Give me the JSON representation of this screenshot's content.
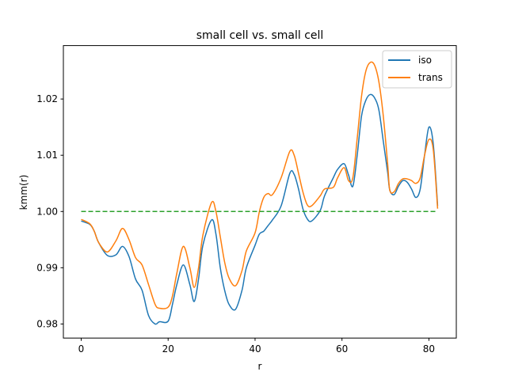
{
  "chart_data": {
    "type": "line",
    "title": "small cell vs. small cell",
    "xlabel": "r",
    "ylabel": "kmm(r)",
    "xlim": [
      -4.1,
      86.3
    ],
    "ylim": [
      0.9775,
      1.0295
    ],
    "xticks": [
      0,
      20,
      40,
      60,
      80
    ],
    "xtick_labels": [
      "0",
      "20",
      "40",
      "60",
      "80"
    ],
    "yticks": [
      0.98,
      0.99,
      1.0,
      1.01,
      1.02
    ],
    "ytick_labels": [
      "0.98",
      "0.99",
      "1.00",
      "1.01",
      "1.02"
    ],
    "grid": false,
    "legend": "top-right",
    "series": [
      {
        "name": "iso",
        "color": "#1f77b4",
        "x": [
          0,
          2,
          3,
          4,
          6,
          8,
          9.5,
          11,
          12.5,
          14,
          15.5,
          17,
          18,
          20,
          21,
          22,
          23.5,
          25,
          26,
          27,
          28,
          30,
          31,
          32,
          33,
          34,
          35.5,
          37,
          38,
          40,
          41,
          42,
          43,
          44,
          46,
          48,
          49,
          50,
          51,
          52,
          53,
          55,
          56,
          58,
          59,
          60.5,
          61.5,
          62.5,
          63.5,
          64.5,
          65.5,
          66.5,
          67.5,
          68.5,
          69.5,
          70.5,
          71,
          72,
          73,
          74,
          75,
          76,
          77,
          78,
          79,
          80,
          81,
          82
        ],
        "values": [
          0.9983,
          0.9977,
          0.9965,
          0.9945,
          0.9922,
          0.9923,
          0.9938,
          0.992,
          0.988,
          0.986,
          0.9815,
          0.98,
          0.9804,
          0.9805,
          0.9835,
          0.987,
          0.9905,
          0.987,
          0.984,
          0.988,
          0.994,
          0.9985,
          0.996,
          0.99,
          0.986,
          0.9835,
          0.9826,
          0.986,
          0.99,
          0.994,
          0.996,
          0.9965,
          0.9975,
          0.9985,
          1.001,
          1.0068,
          1.0066,
          1.004,
          1.0005,
          0.9987,
          0.9983,
          1.0002,
          1.0028,
          1.006,
          1.0075,
          1.0085,
          1.0065,
          1.0045,
          1.01,
          1.017,
          1.0198,
          1.0208,
          1.0202,
          1.018,
          1.0125,
          1.007,
          1.0038,
          1.003,
          1.0045,
          1.0055,
          1.0052,
          1.004,
          1.0025,
          1.004,
          1.01,
          1.015,
          1.012,
          1.001
        ]
      },
      {
        "name": "trans",
        "color": "#ff7f0e",
        "x": [
          0,
          2,
          3,
          4,
          6,
          8,
          9.5,
          11,
          12.5,
          14,
          15.5,
          17,
          18,
          20,
          21,
          22,
          23.5,
          25,
          26,
          27,
          28,
          30,
          31,
          32,
          33,
          34,
          35.5,
          37,
          38,
          40,
          41,
          42,
          43,
          44,
          46,
          48,
          49,
          50,
          51,
          52,
          53,
          55,
          56,
          58,
          59,
          60.5,
          61.5,
          62.5,
          63.5,
          64.5,
          65.5,
          66.5,
          67.5,
          68.5,
          69.5,
          70.5,
          71,
          72,
          73,
          74,
          75,
          76,
          77,
          78,
          79,
          80,
          81,
          82
        ],
        "values": [
          0.9986,
          0.9978,
          0.9965,
          0.9945,
          0.9928,
          0.9948,
          0.997,
          0.995,
          0.9918,
          0.9905,
          0.987,
          0.9835,
          0.9828,
          0.983,
          0.985,
          0.989,
          0.9938,
          0.99,
          0.9865,
          0.99,
          0.9958,
          1.0016,
          1.0,
          0.9955,
          0.991,
          0.9882,
          0.9868,
          0.9895,
          0.993,
          0.9962,
          1.0,
          1.0025,
          1.0032,
          1.003,
          1.006,
          1.0107,
          1.01,
          1.0068,
          1.0035,
          1.0012,
          1.001,
          1.0028,
          1.004,
          1.0043,
          1.006,
          1.0078,
          1.0055,
          1.006,
          1.013,
          1.0205,
          1.025,
          1.0265,
          1.026,
          1.023,
          1.017,
          1.0085,
          1.0038,
          1.0035,
          1.005,
          1.0058,
          1.0058,
          1.0055,
          1.005,
          1.006,
          1.01,
          1.0128,
          1.011,
          1.0005
        ]
      },
      {
        "name": "",
        "color": "#2ca02c",
        "dashed": true,
        "x": [
          0,
          82
        ],
        "values": [
          1.0,
          1.0
        ]
      }
    ]
  }
}
